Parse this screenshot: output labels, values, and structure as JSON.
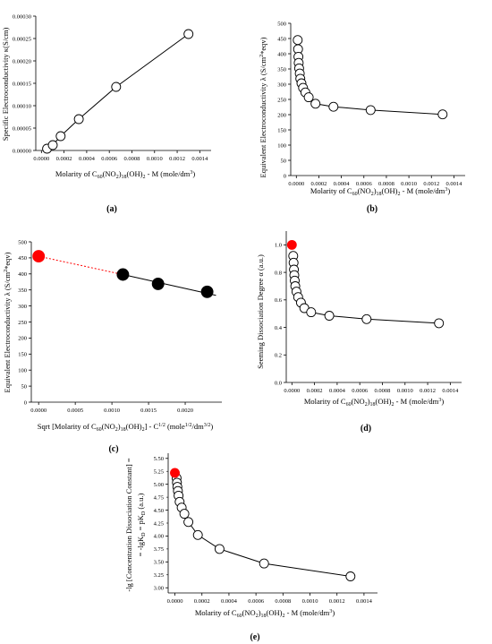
{
  "chart_data": [
    {
      "id": "a",
      "panel_label": "(a)",
      "type": "line",
      "xlabel": "Molarity of C60(NO2)18(OH)2 - M (mole/dm3)",
      "ylabel": "Specific Electroconductivity  κ(S/cm)",
      "xlim": [
        -5e-05,
        0.0015
      ],
      "ylim": [
        0,
        0.0003
      ],
      "xticks": [
        0.0,
        0.0002,
        0.0004,
        0.0006,
        0.0008,
        0.001,
        0.0012,
        0.0014
      ],
      "xtick_labels": [
        "0.0000",
        "0.0002",
        "0.0004",
        "0.0006",
        "0.0008",
        "0.0010",
        "0.0012",
        "0.0014"
      ],
      "yticks": [
        0,
        5e-05,
        0.0001,
        0.00015,
        0.0002,
        0.00025,
        0.0003
      ],
      "ytick_labels": [
        "0.00000",
        "0.00005",
        "0.00010",
        "0.00015",
        "0.00020",
        "0.00025",
        "0.00030"
      ],
      "series": [
        {
          "marker": "open",
          "points": [
            [
              5e-05,
              4e-06
            ],
            [
              0.0001,
              1.2e-05
            ],
            [
              0.00017,
              3.2e-05
            ],
            [
              0.00033,
              7e-05
            ],
            [
              0.00066,
              0.000142
            ],
            [
              0.0013,
              0.00026
            ]
          ]
        }
      ]
    },
    {
      "id": "b",
      "panel_label": "(b)",
      "type": "line",
      "xlabel": "Molarity of C60(NO2)18(OH)2 - M (mole/dm3)",
      "ylabel": "Equivalent Electroconductivity  λ (S/cm2*eqv)",
      "xlim": [
        -5e-05,
        0.0015
      ],
      "ylim": [
        0,
        500
      ],
      "xticks": [
        0.0,
        0.0002,
        0.0004,
        0.0006,
        0.0008,
        0.001,
        0.0012,
        0.0014
      ],
      "xtick_labels": [
        "0.0000",
        "0.0002",
        "0.0004",
        "0.0006",
        "0.0008",
        "0.0010",
        "0.0012",
        "0.0014"
      ],
      "yticks": [
        0,
        50,
        100,
        150,
        200,
        250,
        300,
        350,
        400,
        450,
        500
      ],
      "ytick_labels": [
        "0",
        "50",
        "100",
        "150",
        "200",
        "250",
        "300",
        "350",
        "400",
        "450",
        "500"
      ],
      "series": [
        {
          "marker": "open",
          "points": [
            [
              1.2e-05,
              445
            ],
            [
              1.5e-05,
              415
            ],
            [
              1.8e-05,
              390
            ],
            [
              2.1e-05,
              370
            ],
            [
              2.5e-05,
              352
            ],
            [
              3e-05,
              335
            ],
            [
              3.5e-05,
              318
            ],
            [
              4.5e-05,
              303
            ],
            [
              6e-05,
              288
            ],
            [
              8e-05,
              273
            ],
            [
              0.00011,
              257
            ],
            [
              0.00017,
              236
            ],
            [
              0.00033,
              226
            ],
            [
              0.00066,
              215
            ],
            [
              0.0013,
              201
            ]
          ]
        }
      ]
    },
    {
      "id": "c",
      "panel_label": "(c)",
      "type": "scatter",
      "xlabel": "Sqrt [Molarity of C60(NO2)18(OH)2] - C1/2 (mole1/2/dm3/2)",
      "ylabel": "Equivalent Electroconductivity  λ (S/cm2*eqv)",
      "xlim": [
        -0.0001,
        0.0025
      ],
      "ylim": [
        0,
        500
      ],
      "xticks": [
        0.0,
        0.0005,
        0.001,
        0.0015,
        0.002
      ],
      "xtick_labels": [
        "0.0000",
        "0.0005",
        "0.0010",
        "0.0015",
        "0.0020"
      ],
      "yticks": [
        0,
        50,
        100,
        150,
        200,
        250,
        300,
        350,
        400,
        450,
        500
      ],
      "ytick_labels": [
        "0",
        "50",
        "100",
        "150",
        "200",
        "250",
        "300",
        "350",
        "400",
        "450",
        "500"
      ],
      "series": [
        {
          "marker": "filled",
          "color": "#000000",
          "points": [
            [
              0.00115,
              398
            ],
            [
              0.00163,
              369
            ],
            [
              0.0023,
              344
            ]
          ]
        },
        {
          "marker": "filled",
          "color": "#ff0000",
          "points": [
            [
              0.0,
              455
            ]
          ]
        }
      ],
      "fit_line": {
        "x": [
          0.00115,
          0.00242
        ],
        "y": [
          398,
          333
        ]
      },
      "extrapolation": {
        "color": "#ff0000",
        "x": [
          0.0,
          0.00115
        ],
        "y": [
          455,
          398
        ]
      }
    },
    {
      "id": "d",
      "panel_label": "(d)",
      "type": "line",
      "xlabel": "Molarity of C60(NO2)18(OH)2 - M (mole/dm3)",
      "ylabel": "Seeming Dissociation Degree  α (a.u.)",
      "xlim": [
        -5e-05,
        0.0015
      ],
      "ylim": [
        0,
        1.1
      ],
      "xticks": [
        0.0,
        0.0002,
        0.0004,
        0.0006,
        0.0008,
        0.001,
        0.0012,
        0.0014
      ],
      "xtick_labels": [
        "0.0000",
        "0.0002",
        "0.0004",
        "0.0006",
        "0.0008",
        "0.0010",
        "0.0012",
        "0.0014"
      ],
      "yticks": [
        0,
        0.2,
        0.4,
        0.6,
        0.8,
        1.0
      ],
      "ytick_labels": [
        "0.0",
        "0.2",
        "0.4",
        "0.6",
        "0.8",
        "1.0"
      ],
      "series": [
        {
          "marker": "open",
          "points": [
            [
              1.2e-05,
              0.92
            ],
            [
              1.5e-05,
              0.87
            ],
            [
              1.8e-05,
              0.82
            ],
            [
              2.1e-05,
              0.78
            ],
            [
              2.5e-05,
              0.74
            ],
            [
              3e-05,
              0.7
            ],
            [
              4e-05,
              0.66
            ],
            [
              5.5e-05,
              0.62
            ],
            [
              8e-05,
              0.58
            ],
            [
              0.00011,
              0.54
            ],
            [
              0.00017,
              0.51
            ],
            [
              0.00033,
              0.485
            ],
            [
              0.00066,
              0.46
            ],
            [
              0.0013,
              0.43
            ]
          ]
        },
        {
          "marker": "filled",
          "color": "#ff0000",
          "points": [
            [
              0.0,
              1.0
            ]
          ]
        }
      ]
    },
    {
      "id": "e",
      "panel_label": "(e)",
      "type": "line",
      "xlabel": "Molarity of C60(NO2)18(OH)2 - M (mole/dm3)",
      "ylabel_line1": "-lg [Concentration Dissociation Constant] =",
      "ylabel_line2": "= -lgKD = pKD  (a.u.)",
      "xlim": [
        -5e-05,
        0.0015
      ],
      "ylim": [
        2.9,
        5.6
      ],
      "xticks": [
        0.0,
        0.0002,
        0.0004,
        0.0006,
        0.0008,
        0.001,
        0.0012,
        0.0014
      ],
      "xtick_labels": [
        "0.0000",
        "0.0002",
        "0.0004",
        "0.0006",
        "0.0008",
        "0.0010",
        "0.0012",
        "0.0014"
      ],
      "yticks": [
        3.0,
        3.5,
        4.0,
        4.5,
        5.0,
        5.5
      ],
      "ytick_labels": [
        "3.00",
        "3.50",
        "4.00",
        "4.50",
        "5.00",
        "5.50"
      ],
      "minor_yticks": [
        3.25,
        3.75,
        4.25,
        4.75,
        5.25
      ],
      "minor_ytick_labels": [
        "3.25",
        "3.75",
        "4.25",
        "4.75",
        "5.25"
      ],
      "series": [
        {
          "marker": "open",
          "points": [
            [
              1.2e-05,
              5.12
            ],
            [
              1.5e-05,
              5.03
            ],
            [
              1.8e-05,
              4.95
            ],
            [
              2.2e-05,
              4.87
            ],
            [
              2.7e-05,
              4.78
            ],
            [
              3.5e-05,
              4.66
            ],
            [
              5e-05,
              4.55
            ],
            [
              7e-05,
              4.43
            ],
            [
              0.0001,
              4.27
            ],
            [
              0.00017,
              4.02
            ],
            [
              0.00033,
              3.75
            ],
            [
              0.00066,
              3.47
            ],
            [
              0.0013,
              3.22
            ]
          ]
        },
        {
          "marker": "filled",
          "color": "#ff0000",
          "points": [
            [
              0.0,
              5.22
            ]
          ]
        }
      ]
    }
  ]
}
